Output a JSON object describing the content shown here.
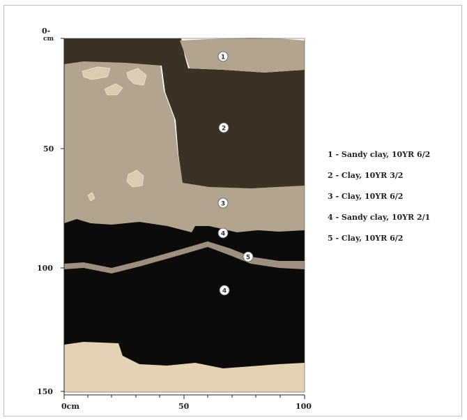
{
  "y_axis": {
    "ticks": [
      "0-",
      "50",
      "100",
      "150"
    ],
    "unit": "cm"
  },
  "x_axis": {
    "ticks": [
      "0cm",
      "50",
      "100"
    ]
  },
  "layer_markers": [
    "1",
    "2",
    "3",
    "4",
    "5",
    "4"
  ],
  "legend": [
    "1 - Sandy clay, 10YR 6/2",
    "2 - Clay, 10YR 3/2",
    "3 - Clay, 10YR 6/2",
    "4 - Sandy clay, 10YR 2/1",
    "5 - Clay, 10YR 6/2"
  ],
  "colors": {
    "layer1": "#b3a490",
    "layer2": "#3b3125",
    "layer3": "#b3a490",
    "layer4": "#0c0b09",
    "layer5": "#9e9080",
    "base": "#e3d3b4"
  }
}
